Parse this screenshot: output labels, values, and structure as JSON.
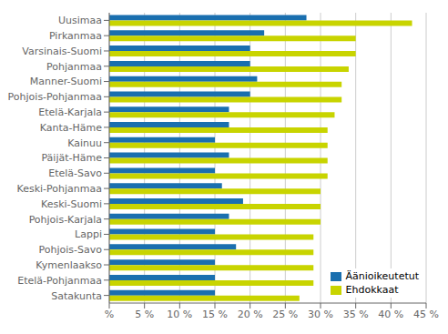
{
  "chart_data": {
    "type": "bar",
    "orientation": "horizontal",
    "categories": [
      "Uusimaa",
      "Pirkanmaa",
      "Varsinais-Suomi",
      "Pohjanmaa",
      "Manner-Suomi",
      "Pohjois-Pohjanmaa",
      "Etelä-Karjala",
      "Kanta-Häme",
      "Kainuu",
      "Päijät-Häme",
      "Etelä-Savo",
      "Keski-Pohjanmaa",
      "Keski-Suomi",
      "Pohjois-Karjala",
      "Lappi",
      "Pohjois-Savo",
      "Kymenlaakso",
      "Etelä-Pohjanmaa",
      "Satakunta"
    ],
    "series": [
      {
        "name": "Äänioikeutetut",
        "color": "#1a6faf",
        "values": [
          28,
          22,
          20,
          20,
          21,
          20,
          17,
          17,
          15,
          17,
          15,
          16,
          19,
          17,
          15,
          18,
          15,
          15,
          15
        ]
      },
      {
        "name": "Ehdokkaat",
        "color": "#c8d400",
        "values": [
          43,
          35,
          35,
          34,
          33,
          33,
          32,
          31,
          31,
          31,
          31,
          30,
          30,
          30,
          29,
          29,
          29,
          29,
          27
        ]
      }
    ],
    "xlim": [
      0,
      45
    ],
    "xticks": [
      {
        "value": 0,
        "label": "%"
      },
      {
        "value": 5,
        "label": "5 %"
      },
      {
        "value": 10,
        "label": "10 %"
      },
      {
        "value": 15,
        "label": "15 %"
      },
      {
        "value": 20,
        "label": "20 %"
      },
      {
        "value": 25,
        "label": "25 %"
      },
      {
        "value": 30,
        "label": "30 %"
      },
      {
        "value": 35,
        "label": "35 %"
      },
      {
        "value": 40,
        "label": "40 %"
      },
      {
        "value": 45,
        "label": "45 %"
      }
    ],
    "grid": true,
    "legend": "lower right"
  }
}
